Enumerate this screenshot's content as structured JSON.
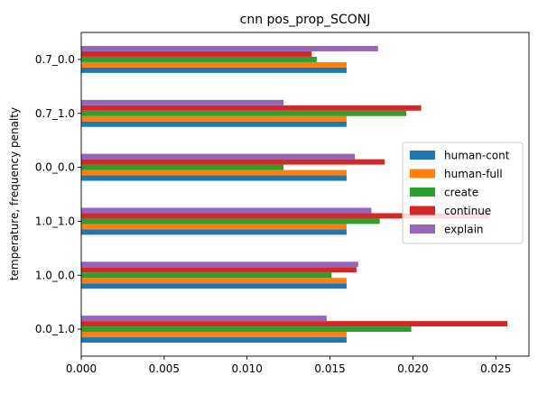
{
  "chart_data": {
    "type": "bar",
    "orientation": "horizontal",
    "title": "cnn pos_prop_SCONJ",
    "xlabel": "",
    "ylabel": "temperature, frequency penalty",
    "xlim": [
      0,
      0.027
    ],
    "xticks": [
      0.0,
      0.005,
      0.01,
      0.015,
      0.02,
      0.025
    ],
    "xtick_labels": [
      "0.000",
      "0.005",
      "0.010",
      "0.015",
      "0.020",
      "0.025"
    ],
    "categories": [
      "0.0_1.0",
      "1.0_0.0",
      "1.0_1.0",
      "0.0_0.0",
      "0.7_1.0",
      "0.7_0.0"
    ],
    "grid": false,
    "legend": {
      "placement": "center-right",
      "entries": [
        "human-cont",
        "human-full",
        "create",
        "continue",
        "explain"
      ]
    },
    "series": [
      {
        "name": "human-cont",
        "color": "#1f77b4",
        "values": [
          0.016,
          0.016,
          0.016,
          0.016,
          0.016,
          0.016
        ]
      },
      {
        "name": "human-full",
        "color": "#ff7f0e",
        "values": [
          0.016,
          0.016,
          0.016,
          0.016,
          0.016,
          0.016
        ]
      },
      {
        "name": "create",
        "color": "#2ca02c",
        "values": [
          0.0199,
          0.0151,
          0.018,
          0.0122,
          0.0196,
          0.0142
        ]
      },
      {
        "name": "continue",
        "color": "#d62728",
        "values": [
          0.0257,
          0.0166,
          0.0246,
          0.0183,
          0.0205,
          0.0139
        ]
      },
      {
        "name": "explain",
        "color": "#9467bd",
        "values": [
          0.0148,
          0.0167,
          0.0175,
          0.0165,
          0.0122,
          0.0179
        ]
      }
    ]
  }
}
